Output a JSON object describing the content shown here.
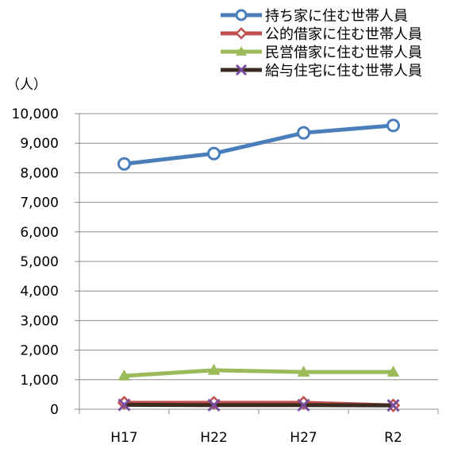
{
  "chart_data": {
    "type": "line",
    "title": "",
    "xlabel": "",
    "ylabel": "（人）",
    "categories": [
      "H17",
      "H22",
      "H27",
      "R2"
    ],
    "ylim": [
      0,
      10000
    ],
    "y_ticks": [
      0,
      1000,
      2000,
      3000,
      4000,
      5000,
      6000,
      7000,
      8000,
      9000,
      10000
    ],
    "y_tick_labels": [
      "0",
      "1,000",
      "2,000",
      "3,000",
      "4,000",
      "5,000",
      "6,000",
      "7,000",
      "8,000",
      "9,000",
      "10,000"
    ],
    "grid": true,
    "legend_position": "top-right",
    "series": [
      {
        "name": "持ち家に住む世帯人員",
        "color": "#4a7ebb",
        "marker": "circle",
        "values": [
          8300,
          8650,
          9350,
          9600
        ]
      },
      {
        "name": "公的借家に住む世帯人員",
        "color": "#c0504d",
        "marker": "diamond",
        "values": [
          220,
          220,
          220,
          130
        ]
      },
      {
        "name": "民営借家に住む世帯人員",
        "color": "#9bbb59",
        "marker": "triangle",
        "values": [
          1130,
          1320,
          1260,
          1260
        ]
      },
      {
        "name": "給与住宅に住む世帯人員",
        "color": "#3d2b1f",
        "marker": "x",
        "values": [
          150,
          140,
          140,
          130
        ]
      }
    ]
  }
}
